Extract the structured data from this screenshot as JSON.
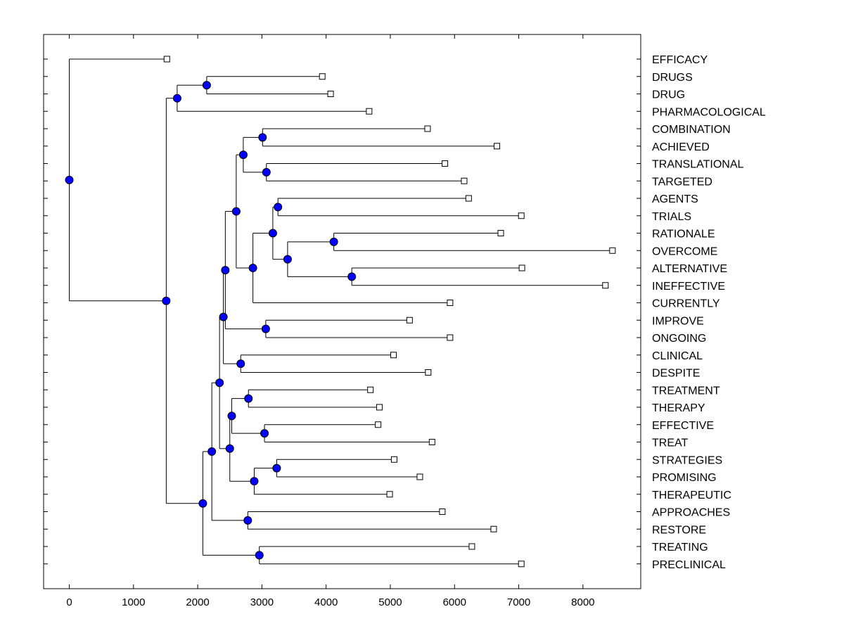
{
  "chart_data": {
    "type": "dendrogram",
    "title": "",
    "xlabel": "",
    "ylabel": "",
    "xlim": [
      -400,
      8900
    ],
    "x_ticks": [
      0,
      1000,
      2000,
      3000,
      4000,
      5000,
      6000,
      7000,
      8000
    ],
    "x_tick_labels": [
      "0",
      "1000",
      "2000",
      "3000",
      "4000",
      "5000",
      "6000",
      "7000",
      "8000"
    ],
    "node_color": "#0000ff",
    "leaves": [
      {
        "label": "EFFICACY",
        "value": 1520
      },
      {
        "label": "DRUGS",
        "value": 3940
      },
      {
        "label": "DRUG",
        "value": 4070
      },
      {
        "label": "PHARMACOLOGICAL",
        "value": 4670
      },
      {
        "label": "COMBINATION",
        "value": 5580
      },
      {
        "label": "ACHIEVED",
        "value": 6660
      },
      {
        "label": "TRANSLATIONAL",
        "value": 5850
      },
      {
        "label": "TARGETED",
        "value": 6150
      },
      {
        "label": "AGENTS",
        "value": 6220
      },
      {
        "label": "TRIALS",
        "value": 7040
      },
      {
        "label": "RATIONALE",
        "value": 6720
      },
      {
        "label": "OVERCOME",
        "value": 8460
      },
      {
        "label": "ALTERNATIVE",
        "value": 7050
      },
      {
        "label": "INEFFECTIVE",
        "value": 8350
      },
      {
        "label": "CURRENTLY",
        "value": 5930
      },
      {
        "label": "IMPROVE",
        "value": 5300
      },
      {
        "label": "ONGOING",
        "value": 5930
      },
      {
        "label": "CLINICAL",
        "value": 5050
      },
      {
        "label": "DESPITE",
        "value": 5590
      },
      {
        "label": "TREATMENT",
        "value": 4690
      },
      {
        "label": "THERAPY",
        "value": 4830
      },
      {
        "label": "EFFECTIVE",
        "value": 4810
      },
      {
        "label": "TREAT",
        "value": 5650
      },
      {
        "label": "STRATEGIES",
        "value": 5060
      },
      {
        "label": "PROMISING",
        "value": 5460
      },
      {
        "label": "THERAPEUTIC",
        "value": 4990
      },
      {
        "label": "APPROACHES",
        "value": 5810
      },
      {
        "label": "RESTORE",
        "value": 6610
      },
      {
        "label": "TREATING",
        "value": 6270
      },
      {
        "label": "PRECLINICAL",
        "value": 7040
      }
    ],
    "merges": [
      {
        "value": 2140,
        "children": [
          "L1",
          "L2"
        ]
      },
      {
        "value": 1680,
        "children": [
          "N0",
          "L3"
        ]
      },
      {
        "value": 3010,
        "children": [
          "L4",
          "L5"
        ]
      },
      {
        "value": 3070,
        "children": [
          "L6",
          "L7"
        ]
      },
      {
        "value": 2710,
        "children": [
          "N2",
          "N3"
        ]
      },
      {
        "value": 3250,
        "children": [
          "L8",
          "L9"
        ]
      },
      {
        "value": 4120,
        "children": [
          "L10",
          "L11"
        ]
      },
      {
        "value": 4400,
        "children": [
          "L12",
          "L13"
        ]
      },
      {
        "value": 3400,
        "children": [
          "N6",
          "N7"
        ]
      },
      {
        "value": 3170,
        "children": [
          "N5",
          "N8"
        ]
      },
      {
        "value": 2860,
        "children": [
          "N9",
          "L14"
        ]
      },
      {
        "value": 2600,
        "children": [
          "N4",
          "N10"
        ]
      },
      {
        "value": 3060,
        "children": [
          "L15",
          "L16"
        ]
      },
      {
        "value": 2430,
        "children": [
          "N11",
          "N12"
        ]
      },
      {
        "value": 2670,
        "children": [
          "L17",
          "L18"
        ]
      },
      {
        "value": 2400,
        "children": [
          "N13",
          "N14"
        ]
      },
      {
        "value": 2790,
        "children": [
          "L19",
          "L20"
        ]
      },
      {
        "value": 3040,
        "children": [
          "L21",
          "L22"
        ]
      },
      {
        "value": 2530,
        "children": [
          "N16",
          "N17"
        ]
      },
      {
        "value": 3230,
        "children": [
          "L23",
          "L24"
        ]
      },
      {
        "value": 2880,
        "children": [
          "N19",
          "L25"
        ]
      },
      {
        "value": 2500,
        "children": [
          "N18",
          "N20"
        ]
      },
      {
        "value": 2340,
        "children": [
          "N15",
          "N21"
        ]
      },
      {
        "value": 2780,
        "children": [
          "L26",
          "L27"
        ]
      },
      {
        "value": 2220,
        "children": [
          "N22",
          "N23"
        ]
      },
      {
        "value": 2960,
        "children": [
          "L28",
          "L29"
        ]
      },
      {
        "value": 2080,
        "children": [
          "N24",
          "N25"
        ]
      },
      {
        "value": 1510,
        "children": [
          "N1",
          "N26"
        ]
      },
      {
        "value": 0,
        "children": [
          "L0",
          "N27"
        ]
      }
    ]
  }
}
